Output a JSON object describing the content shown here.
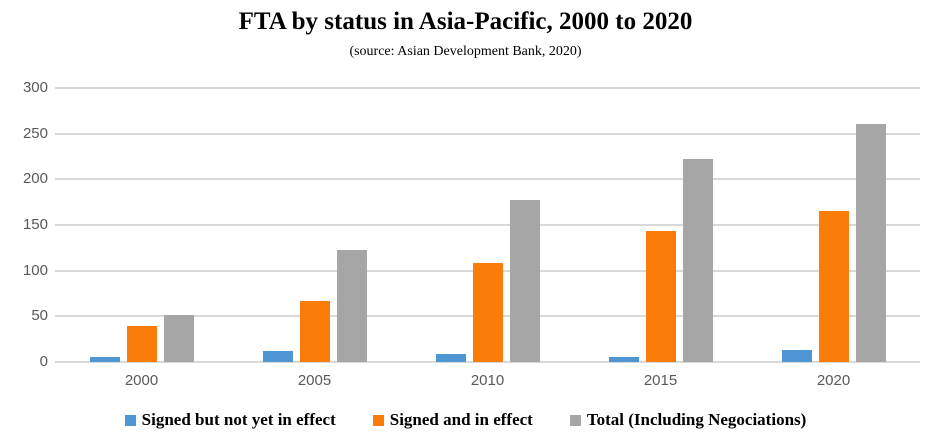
{
  "title": "FTA by status in Asia-Pacific, 2000 to 2020",
  "subtitle": "(source: Asian Development Bank, 2020)",
  "colors": {
    "background": "#FFFFFF",
    "grid": "#D9D9D9",
    "tick_text": "#595959",
    "title_text": "#000000",
    "series_blue": "#4E96D2",
    "series_orange": "#FB7D09",
    "series_gray": "#A6A6A6"
  },
  "chart_data": {
    "type": "bar",
    "title": "FTA by status in Asia-Pacific, 2000 to 2020",
    "subtitle": "(source: Asian Development Bank, 2020)",
    "categories": [
      "2000",
      "2005",
      "2010",
      "2015",
      "2020"
    ],
    "series": [
      {
        "name": "Signed but not yet in effect",
        "color": "#4E96D2",
        "values": [
          6,
          12,
          9,
          5,
          13
        ]
      },
      {
        "name": "Signed and in effect",
        "color": "#FB7D09",
        "values": [
          39,
          67,
          108,
          143,
          165
        ]
      },
      {
        "name": "Total (Including Negociations)",
        "color": "#A6A6A6",
        "values": [
          51,
          123,
          177,
          222,
          261
        ]
      }
    ],
    "xlabel": "",
    "ylabel": "",
    "ylim": [
      0,
      300
    ],
    "yticks": [
      0,
      50,
      100,
      150,
      200,
      250,
      300
    ],
    "grid": true,
    "legend_position": "bottom"
  }
}
